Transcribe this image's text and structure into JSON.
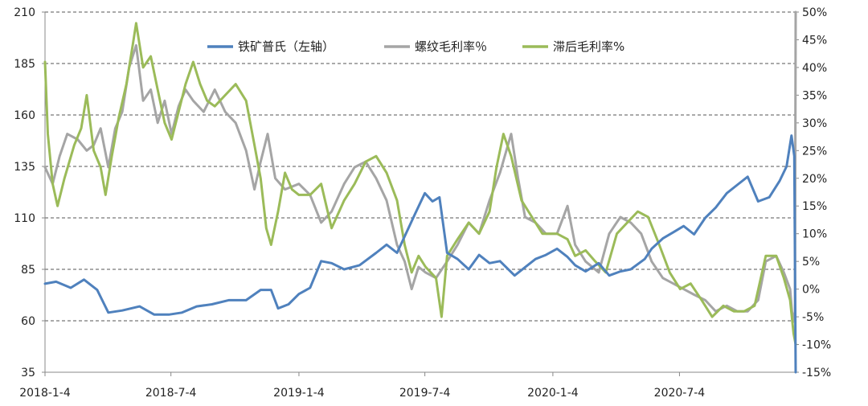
{
  "chart_data": {
    "type": "line",
    "title": "",
    "x_tick_labels": [
      "2018-1-4",
      "2018-7-4",
      "2019-1-4",
      "2019-7-4",
      "2020-1-4",
      "2020-7-4"
    ],
    "x_range": [
      "2018-01-04",
      "2020-12-18"
    ],
    "y_left": {
      "range": [
        35,
        210
      ],
      "tick_labels": [
        "35",
        "60",
        "85",
        "110",
        "135",
        "160",
        "185",
        "210"
      ]
    },
    "y_right": {
      "range": [
        -15,
        50
      ],
      "unit": "%",
      "tick_labels": [
        "-15%",
        "-10%",
        "-5%",
        "0%",
        "5%",
        "10%",
        "15%",
        "20%",
        "25%",
        "30%",
        "35%",
        "40%",
        "45%",
        "50%"
      ]
    },
    "grid": "horizontal dashed",
    "legend": {
      "position": "top-center",
      "entries": [
        "铁矿普氏（左轴）",
        "螺纹毛利率％",
        "滞后毛利率%"
      ]
    },
    "series": [
      {
        "name": "铁矿普氏（左轴）",
        "axis": "left",
        "color": "#4f81bd",
        "points": [
          [
            "2018-01-04",
            78
          ],
          [
            "2018-01-20",
            79
          ],
          [
            "2018-02-10",
            76
          ],
          [
            "2018-03-01",
            80
          ],
          [
            "2018-03-20",
            75
          ],
          [
            "2018-04-05",
            64
          ],
          [
            "2018-04-25",
            65
          ],
          [
            "2018-05-20",
            67
          ],
          [
            "2018-06-10",
            63
          ],
          [
            "2018-07-01",
            63
          ],
          [
            "2018-07-20",
            64
          ],
          [
            "2018-08-10",
            67
          ],
          [
            "2018-09-01",
            68
          ],
          [
            "2018-09-25",
            70
          ],
          [
            "2018-10-20",
            70
          ],
          [
            "2018-11-10",
            75
          ],
          [
            "2018-11-25",
            75
          ],
          [
            "2018-12-05",
            66
          ],
          [
            "2018-12-20",
            68
          ],
          [
            "2019-01-04",
            73
          ],
          [
            "2019-01-20",
            76
          ],
          [
            "2019-02-05",
            89
          ],
          [
            "2019-02-20",
            88
          ],
          [
            "2019-03-10",
            85
          ],
          [
            "2019-04-01",
            87
          ],
          [
            "2019-04-25",
            93
          ],
          [
            "2019-05-10",
            97
          ],
          [
            "2019-05-25",
            93
          ],
          [
            "2019-06-05",
            101
          ],
          [
            "2019-06-20",
            112
          ],
          [
            "2019-07-04",
            122
          ],
          [
            "2019-07-15",
            118
          ],
          [
            "2019-07-25",
            120
          ],
          [
            "2019-08-05",
            93
          ],
          [
            "2019-08-20",
            90
          ],
          [
            "2019-09-05",
            85
          ],
          [
            "2019-09-20",
            92
          ],
          [
            "2019-10-05",
            88
          ],
          [
            "2019-10-20",
            89
          ],
          [
            "2019-11-10",
            82
          ],
          [
            "2019-11-25",
            86
          ],
          [
            "2019-12-10",
            90
          ],
          [
            "2019-12-25",
            92
          ],
          [
            "2020-01-10",
            95
          ],
          [
            "2020-01-25",
            91
          ],
          [
            "2020-02-05",
            87
          ],
          [
            "2020-02-20",
            84
          ],
          [
            "2020-03-10",
            88
          ],
          [
            "2020-03-25",
            82
          ],
          [
            "2020-04-10",
            84
          ],
          [
            "2020-04-25",
            85
          ],
          [
            "2020-05-15",
            90
          ],
          [
            "2020-05-25",
            95
          ],
          [
            "2020-06-10",
            100
          ],
          [
            "2020-06-25",
            103
          ],
          [
            "2020-07-10",
            106
          ],
          [
            "2020-07-25",
            102
          ],
          [
            "2020-08-10",
            110
          ],
          [
            "2020-08-25",
            115
          ],
          [
            "2020-09-10",
            122
          ],
          [
            "2020-09-25",
            126
          ],
          [
            "2020-10-10",
            130
          ],
          [
            "2020-10-25",
            118
          ],
          [
            "2020-11-10",
            120
          ],
          [
            "2020-11-25",
            128
          ],
          [
            "2020-12-05",
            135
          ],
          [
            "2020-12-12",
            150
          ],
          [
            "2020-12-16",
            140
          ],
          [
            "2020-12-18",
            35
          ]
        ]
      },
      {
        "name": "螺纹毛利率％",
        "axis": "right",
        "color": "#a5a5a5",
        "points": [
          [
            "2018-01-04",
            22
          ],
          [
            "2018-01-15",
            19
          ],
          [
            "2018-01-25",
            24
          ],
          [
            "2018-02-05",
            28
          ],
          [
            "2018-02-20",
            27
          ],
          [
            "2018-03-05",
            25
          ],
          [
            "2018-03-15",
            26
          ],
          [
            "2018-03-25",
            29
          ],
          [
            "2018-04-05",
            22
          ],
          [
            "2018-04-15",
            29
          ],
          [
            "2018-04-25",
            32
          ],
          [
            "2018-05-05",
            40
          ],
          [
            "2018-05-15",
            44
          ],
          [
            "2018-05-25",
            34
          ],
          [
            "2018-06-05",
            36
          ],
          [
            "2018-06-15",
            30
          ],
          [
            "2018-06-25",
            34
          ],
          [
            "2018-07-05",
            28
          ],
          [
            "2018-07-15",
            33
          ],
          [
            "2018-07-25",
            36
          ],
          [
            "2018-08-05",
            34
          ],
          [
            "2018-08-20",
            32
          ],
          [
            "2018-09-05",
            36
          ],
          [
            "2018-09-20",
            32
          ],
          [
            "2018-10-05",
            30
          ],
          [
            "2018-10-20",
            25
          ],
          [
            "2018-11-01",
            18
          ],
          [
            "2018-11-10",
            23
          ],
          [
            "2018-11-20",
            28
          ],
          [
            "2018-12-01",
            20
          ],
          [
            "2018-12-15",
            18
          ],
          [
            "2019-01-04",
            19
          ],
          [
            "2019-01-20",
            17
          ],
          [
            "2019-02-05",
            12
          ],
          [
            "2019-02-20",
            14
          ],
          [
            "2019-03-10",
            19
          ],
          [
            "2019-03-25",
            22
          ],
          [
            "2019-04-10",
            23
          ],
          [
            "2019-04-25",
            20
          ],
          [
            "2019-05-10",
            16
          ],
          [
            "2019-05-25",
            8
          ],
          [
            "2019-06-05",
            5
          ],
          [
            "2019-06-15",
            0
          ],
          [
            "2019-06-25",
            4
          ],
          [
            "2019-07-05",
            3
          ],
          [
            "2019-07-20",
            2
          ],
          [
            "2019-08-05",
            5
          ],
          [
            "2019-08-20",
            8
          ],
          [
            "2019-09-05",
            12
          ],
          [
            "2019-09-20",
            10
          ],
          [
            "2019-10-05",
            16
          ],
          [
            "2019-10-20",
            21
          ],
          [
            "2019-11-05",
            28
          ],
          [
            "2019-11-15",
            20
          ],
          [
            "2019-11-25",
            13
          ],
          [
            "2019-12-10",
            12
          ],
          [
            "2019-12-25",
            10
          ],
          [
            "2020-01-10",
            10
          ],
          [
            "2020-01-25",
            15
          ],
          [
            "2020-02-05",
            8
          ],
          [
            "2020-02-20",
            5
          ],
          [
            "2020-03-10",
            3
          ],
          [
            "2020-03-25",
            10
          ],
          [
            "2020-04-10",
            13
          ],
          [
            "2020-04-25",
            12
          ],
          [
            "2020-05-10",
            10
          ],
          [
            "2020-05-25",
            5
          ],
          [
            "2020-06-10",
            2
          ],
          [
            "2020-06-25",
            1
          ],
          [
            "2020-07-10",
            0
          ],
          [
            "2020-07-25",
            -1
          ],
          [
            "2020-08-10",
            -2
          ],
          [
            "2020-08-25",
            -4
          ],
          [
            "2020-09-10",
            -3
          ],
          [
            "2020-09-25",
            -4
          ],
          [
            "2020-10-10",
            -4
          ],
          [
            "2020-10-25",
            -2
          ],
          [
            "2020-11-05",
            5
          ],
          [
            "2020-11-20",
            6
          ],
          [
            "2020-12-01",
            3
          ],
          [
            "2020-12-10",
            0
          ],
          [
            "2020-12-14",
            -6
          ],
          [
            "2020-12-17",
            -4
          ],
          [
            "2020-12-18",
            50
          ]
        ]
      },
      {
        "name": "滞后毛利率%",
        "axis": "right",
        "color": "#9bbb59",
        "points": [
          [
            "2018-01-04",
            41
          ],
          [
            "2018-01-08",
            28
          ],
          [
            "2018-01-15",
            19
          ],
          [
            "2018-01-22",
            15
          ],
          [
            "2018-02-01",
            20
          ],
          [
            "2018-02-15",
            26
          ],
          [
            "2018-02-25",
            29
          ],
          [
            "2018-03-05",
            35
          ],
          [
            "2018-03-15",
            25
          ],
          [
            "2018-03-25",
            22
          ],
          [
            "2018-04-01",
            17
          ],
          [
            "2018-04-10",
            24
          ],
          [
            "2018-04-20",
            31
          ],
          [
            "2018-05-01",
            37
          ],
          [
            "2018-05-10",
            44
          ],
          [
            "2018-05-15",
            48
          ],
          [
            "2018-05-25",
            40
          ],
          [
            "2018-06-05",
            42
          ],
          [
            "2018-06-15",
            36
          ],
          [
            "2018-06-25",
            30
          ],
          [
            "2018-07-05",
            27
          ],
          [
            "2018-07-15",
            32
          ],
          [
            "2018-07-25",
            37
          ],
          [
            "2018-08-05",
            41
          ],
          [
            "2018-08-15",
            37
          ],
          [
            "2018-08-25",
            34
          ],
          [
            "2018-09-05",
            33
          ],
          [
            "2018-09-20",
            35
          ],
          [
            "2018-10-05",
            37
          ],
          [
            "2018-10-20",
            34
          ],
          [
            "2018-11-01",
            26
          ],
          [
            "2018-11-10",
            20
          ],
          [
            "2018-11-18",
            11
          ],
          [
            "2018-11-25",
            8
          ],
          [
            "2018-12-05",
            14
          ],
          [
            "2018-12-15",
            21
          ],
          [
            "2018-12-25",
            18
          ],
          [
            "2019-01-04",
            17
          ],
          [
            "2019-01-20",
            17
          ],
          [
            "2019-02-05",
            19
          ],
          [
            "2019-02-20",
            11
          ],
          [
            "2019-03-10",
            16
          ],
          [
            "2019-03-25",
            19
          ],
          [
            "2019-04-10",
            23
          ],
          [
            "2019-04-25",
            24
          ],
          [
            "2019-05-10",
            21
          ],
          [
            "2019-05-25",
            16
          ],
          [
            "2019-06-05",
            8
          ],
          [
            "2019-06-15",
            3
          ],
          [
            "2019-06-25",
            6
          ],
          [
            "2019-07-05",
            4
          ],
          [
            "2019-07-20",
            2
          ],
          [
            "2019-07-28",
            -5
          ],
          [
            "2019-08-05",
            6
          ],
          [
            "2019-08-20",
            9
          ],
          [
            "2019-09-05",
            12
          ],
          [
            "2019-09-20",
            10
          ],
          [
            "2019-10-05",
            14
          ],
          [
            "2019-10-15",
            22
          ],
          [
            "2019-10-25",
            28
          ],
          [
            "2019-11-05",
            24
          ],
          [
            "2019-11-20",
            16
          ],
          [
            "2019-12-05",
            13
          ],
          [
            "2019-12-20",
            10
          ],
          [
            "2020-01-10",
            10
          ],
          [
            "2020-01-25",
            9
          ],
          [
            "2020-02-05",
            6
          ],
          [
            "2020-02-20",
            7
          ],
          [
            "2020-03-05",
            5
          ],
          [
            "2020-03-20",
            3
          ],
          [
            "2020-04-05",
            10
          ],
          [
            "2020-04-20",
            12
          ],
          [
            "2020-05-05",
            14
          ],
          [
            "2020-05-20",
            13
          ],
          [
            "2020-06-05",
            8
          ],
          [
            "2020-06-20",
            3
          ],
          [
            "2020-07-05",
            0
          ],
          [
            "2020-07-20",
            1
          ],
          [
            "2020-08-05",
            -2
          ],
          [
            "2020-08-20",
            -5
          ],
          [
            "2020-09-05",
            -3
          ],
          [
            "2020-09-20",
            -4
          ],
          [
            "2020-10-05",
            -4
          ],
          [
            "2020-10-20",
            -3
          ],
          [
            "2020-11-05",
            6
          ],
          [
            "2020-11-20",
            6
          ],
          [
            "2020-12-01",
            2
          ],
          [
            "2020-12-10",
            -2
          ],
          [
            "2020-12-15",
            -8
          ],
          [
            "2020-12-18",
            -10
          ]
        ]
      }
    ]
  }
}
